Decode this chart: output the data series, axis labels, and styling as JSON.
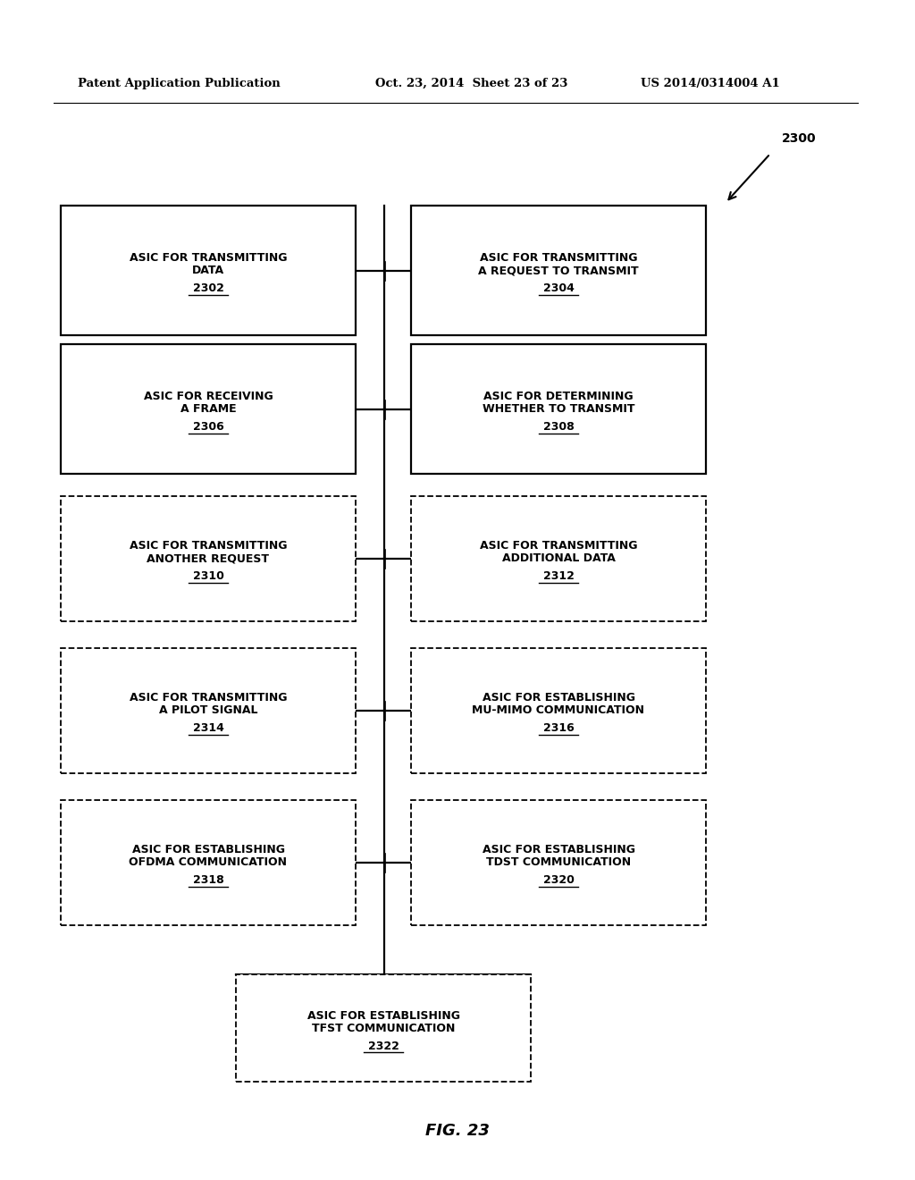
{
  "header_left": "Patent Application Publication",
  "header_mid": "Oct. 23, 2014  Sheet 23 of 23",
  "header_right": "US 2014/0314004 A1",
  "figure_label": "FIG. 23",
  "diagram_label": "2300",
  "background_color": "#ffffff",
  "boxes": [
    {
      "id": "2302",
      "line1": "ASIC FOR TRANSMITTING",
      "line2": "DATA",
      "num": "2302",
      "col": "left",
      "row": 0,
      "style": "solid"
    },
    {
      "id": "2304",
      "line1": "ASIC FOR TRANSMITTING",
      "line2": "A REQUEST TO TRANSMIT",
      "num": "2304",
      "col": "right",
      "row": 0,
      "style": "solid"
    },
    {
      "id": "2306",
      "line1": "ASIC FOR RECEIVING",
      "line2": "A FRAME",
      "num": "2306",
      "col": "left",
      "row": 1,
      "style": "solid"
    },
    {
      "id": "2308",
      "line1": "ASIC FOR DETERMINING",
      "line2": "WHETHER TO TRANSMIT",
      "num": "2308",
      "col": "right",
      "row": 1,
      "style": "solid"
    },
    {
      "id": "2310",
      "line1": "ASIC FOR TRANSMITTING",
      "line2": "ANOTHER REQUEST",
      "num": "2310",
      "col": "left",
      "row": 2,
      "style": "dashed"
    },
    {
      "id": "2312",
      "line1": "ASIC FOR TRANSMITTING",
      "line2": "ADDITIONAL DATA",
      "num": "2312",
      "col": "right",
      "row": 2,
      "style": "dashed"
    },
    {
      "id": "2314",
      "line1": "ASIC FOR TRANSMITTING",
      "line2": "A PILOT SIGNAL",
      "num": "2314",
      "col": "left",
      "row": 3,
      "style": "dashed"
    },
    {
      "id": "2316",
      "line1": "ASIC FOR ESTABLISHING",
      "line2": "MU-MIMO COMMUNICATION",
      "num": "2316",
      "col": "right",
      "row": 3,
      "style": "dashed"
    },
    {
      "id": "2318",
      "line1": "ASIC FOR ESTABLISHING",
      "line2": "OFDMA COMMUNICATION",
      "num": "2318",
      "col": "left",
      "row": 4,
      "style": "dashed"
    },
    {
      "id": "2320",
      "line1": "ASIC FOR ESTABLISHING",
      "line2": "TDST COMMUNICATION",
      "num": "2320",
      "col": "right",
      "row": 4,
      "style": "dashed"
    },
    {
      "id": "2322",
      "line1": "ASIC FOR ESTABLISHING",
      "line2": "TFST COMMUNICATION",
      "num": "2322",
      "col": "center",
      "row": 5,
      "style": "dashed"
    }
  ]
}
